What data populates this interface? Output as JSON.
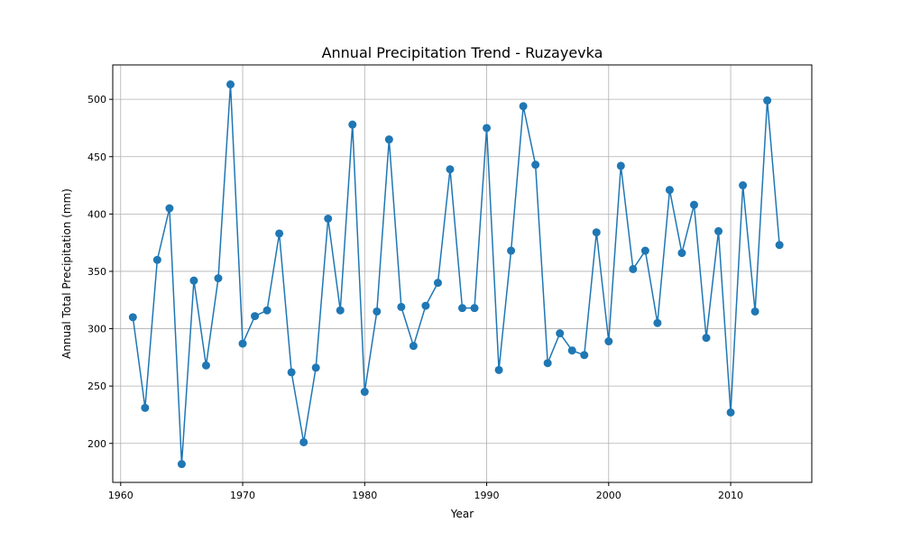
{
  "chart_data": {
    "type": "line",
    "title": "Annual Precipitation Trend - Ruzayevka",
    "xlabel": "Year",
    "ylabel": "Annual Total Precipitation (mm)",
    "xlim": [
      1959.35,
      2016.65
    ],
    "ylim": [
      166,
      530
    ],
    "xticks": [
      1960,
      1970,
      1980,
      1990,
      2000,
      2010
    ],
    "yticks": [
      200,
      250,
      300,
      350,
      400,
      450,
      500
    ],
    "grid": true,
    "color": "#1f77b4",
    "series": [
      {
        "x": [
          1961,
          1962,
          1963,
          1964,
          1965,
          1966,
          1967,
          1968,
          1969,
          1970,
          1971,
          1972,
          1973,
          1974,
          1975,
          1976,
          1977,
          1978,
          1979,
          1980,
          1981,
          1982,
          1983,
          1984,
          1985,
          1986,
          1987,
          1988,
          1989,
          1990,
          1991,
          1992,
          1993,
          1994,
          1995,
          1996,
          1997,
          1998,
          1999,
          2000,
          2001,
          2002,
          2003,
          2004,
          2005,
          2006,
          2007,
          2008,
          2009,
          2010,
          2011,
          2012,
          2013,
          2014
        ],
        "values": [
          310,
          231,
          360,
          405,
          182,
          342,
          268,
          344,
          513,
          287,
          311,
          316,
          383,
          262,
          201,
          266,
          396,
          316,
          478,
          245,
          315,
          465,
          319,
          285,
          320,
          340,
          439,
          318,
          318,
          475,
          264,
          368,
          494,
          443,
          270,
          296,
          281,
          277,
          384,
          289,
          442,
          352,
          368,
          305,
          421,
          366,
          408,
          292,
          385,
          227,
          425,
          315,
          499,
          373
        ]
      }
    ]
  }
}
